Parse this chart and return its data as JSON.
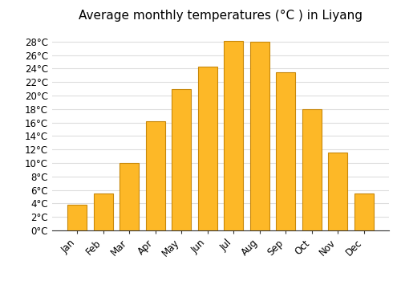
{
  "title": "Average monthly temperatures (°C ) in Liyang",
  "months": [
    "Jan",
    "Feb",
    "Mar",
    "Apr",
    "May",
    "Jun",
    "Jul",
    "Aug",
    "Sep",
    "Oct",
    "Nov",
    "Dec"
  ],
  "values": [
    3.8,
    5.5,
    10.0,
    16.2,
    21.0,
    24.3,
    28.1,
    28.0,
    23.5,
    18.0,
    11.5,
    5.5
  ],
  "bar_color": "#FDB827",
  "bar_edge_color": "#C8880A",
  "background_color": "#FFFFFF",
  "grid_color": "#DDDDDD",
  "title_fontsize": 11,
  "tick_label_fontsize": 8.5,
  "ylim": [
    0,
    30
  ],
  "yticks": [
    0,
    2,
    4,
    6,
    8,
    10,
    12,
    14,
    16,
    18,
    20,
    22,
    24,
    26,
    28
  ]
}
